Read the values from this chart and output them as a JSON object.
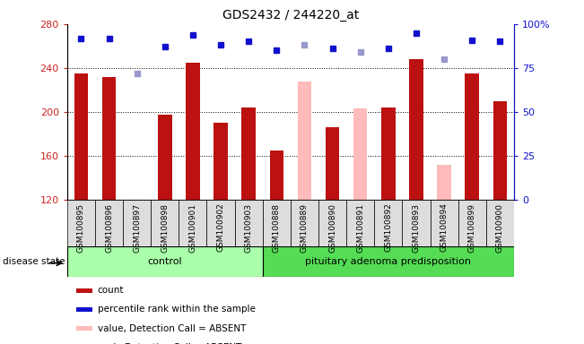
{
  "title": "GDS2432 / 244220_at",
  "samples": [
    "GSM100895",
    "GSM100896",
    "GSM100897",
    "GSM100898",
    "GSM100901",
    "GSM100902",
    "GSM100903",
    "GSM100888",
    "GSM100889",
    "GSM100890",
    "GSM100891",
    "GSM100892",
    "GSM100893",
    "GSM100894",
    "GSM100899",
    "GSM100900"
  ],
  "groups": [
    "control",
    "control",
    "control",
    "control",
    "control",
    "control",
    "control",
    "pituitary adenoma predisposition",
    "pituitary adenoma predisposition",
    "pituitary adenoma predisposition",
    "pituitary adenoma predisposition",
    "pituitary adenoma predisposition",
    "pituitary adenoma predisposition",
    "pituitary adenoma predisposition",
    "pituitary adenoma predisposition",
    "pituitary adenoma predisposition"
  ],
  "values": [
    235,
    232,
    120,
    197,
    245,
    190,
    204,
    165,
    228,
    186,
    203,
    204,
    248,
    152,
    235,
    210
  ],
  "absent": [
    false,
    false,
    true,
    false,
    false,
    false,
    false,
    false,
    true,
    false,
    true,
    false,
    false,
    true,
    false,
    false
  ],
  "ranks": [
    92,
    92,
    72,
    87,
    94,
    88,
    90,
    85,
    88,
    86,
    84,
    86,
    95,
    80,
    91,
    90
  ],
  "ylim_left": [
    120,
    280
  ],
  "ylim_right": [
    0,
    100
  ],
  "yticks_left": [
    120,
    160,
    200,
    240,
    280
  ],
  "yticks_right": [
    0,
    25,
    50,
    75,
    100
  ],
  "bar_color_present": "#bb1111",
  "bar_color_absent": "#ffbbbb",
  "dot_color_present": "#1111cc",
  "dot_color_absent": "#9999cc",
  "group_ctrl_color": "#aaffaa",
  "group_pit_color": "#55dd55",
  "ctrl_count": 7,
  "pit_count": 9,
  "legend_items": [
    {
      "label": "count",
      "color": "#bb1111"
    },
    {
      "label": "percentile rank within the sample",
      "color": "#1111cc"
    },
    {
      "label": "value, Detection Call = ABSENT",
      "color": "#ffbbbb"
    },
    {
      "label": "rank, Detection Call = ABSENT",
      "color": "#9999cc"
    }
  ]
}
